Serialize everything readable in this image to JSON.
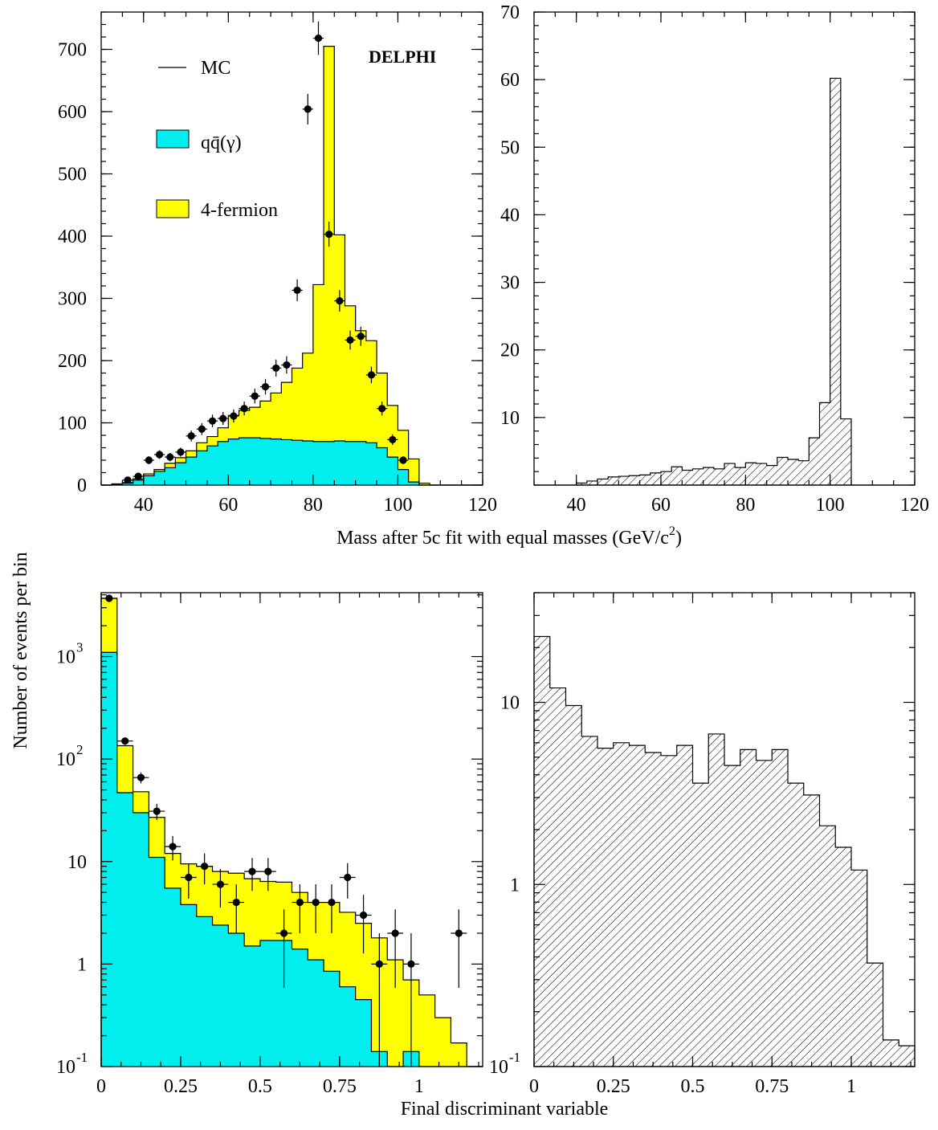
{
  "figure": {
    "ylabel": "Number of events per bin",
    "top_xlabel": "Mass after 5c fit with equal masses (GeV/c^2)",
    "bottom_xlabel": "Final discriminant variable",
    "experiment": "DELPHI",
    "legend": {
      "mc": "MC",
      "qq": "qq̄(γ)",
      "fermion": "4-fermion"
    },
    "colors": {
      "qq_fill": "#00eeee",
      "fermion_fill": "#ffff00",
      "hatch_fill": "#ffffff",
      "line": "#000000"
    }
  },
  "chart_data": [
    {
      "panel": "top-left",
      "type": "histogram",
      "xlabel": "Mass after 5c fit with equal masses (GeV/c^2)",
      "ylabel": "Number of events per bin",
      "xlim": [
        30,
        120
      ],
      "ylim": [
        0,
        760
      ],
      "yscale": "linear",
      "xticks": [
        40,
        60,
        80,
        100,
        120
      ],
      "yticks": [
        0,
        100,
        200,
        300,
        400,
        500,
        600,
        700
      ],
      "bin_edges": [
        30,
        32.5,
        35,
        37.5,
        40,
        42.5,
        45,
        47.5,
        50,
        52.5,
        55,
        57.5,
        60,
        62.5,
        65,
        67.5,
        70,
        72.5,
        75,
        77.5,
        80,
        82.5,
        85,
        87.5,
        90,
        92.5,
        95,
        97.5,
        100,
        102.5,
        105,
        107.5,
        110,
        112.5,
        115,
        117.5,
        120
      ],
      "series": [
        {
          "name": "qq̄(γ)",
          "style": "filled",
          "values": [
            0,
            1,
            3,
            8,
            15,
            22,
            28,
            36,
            45,
            55,
            63,
            70,
            74,
            76,
            76,
            75,
            74,
            73,
            72,
            71,
            70,
            70,
            71,
            70,
            70,
            68,
            60,
            45,
            25,
            5,
            0,
            0,
            0,
            0,
            0,
            0
          ]
        },
        {
          "name": "MC",
          "style": "filled-total",
          "values": [
            0,
            2,
            4,
            10,
            18,
            25,
            35,
            44,
            55,
            68,
            78,
            92,
            112,
            120,
            125,
            135,
            148,
            165,
            188,
            212,
            322,
            705,
            402,
            288,
            248,
            232,
            180,
            128,
            88,
            42,
            3,
            0,
            0,
            0,
            0,
            0
          ]
        }
      ],
      "data_points": {
        "x": [
          36.25,
          38.75,
          41.25,
          43.75,
          46.25,
          48.75,
          51.25,
          53.75,
          56.25,
          58.75,
          61.25,
          63.75,
          66.25,
          68.75,
          71.25,
          73.75,
          76.25,
          78.75,
          81.25,
          83.75,
          86.25,
          88.75,
          91.25,
          93.75,
          96.25,
          98.75,
          101.25
        ],
        "y": [
          8,
          14,
          40,
          49,
          45,
          53,
          79,
          90,
          103,
          107,
          111,
          123,
          143,
          158,
          188,
          193,
          313,
          604,
          718,
          403,
          296,
          233,
          239,
          177,
          123,
          73,
          40
        ]
      }
    },
    {
      "panel": "top-right",
      "type": "histogram",
      "xlim": [
        30,
        120
      ],
      "ylim": [
        0,
        70
      ],
      "yscale": "linear",
      "xticks": [
        40,
        60,
        80,
        100,
        120
      ],
      "yticks": [
        10,
        20,
        30,
        40,
        50,
        60,
        70
      ],
      "bin_edges": [
        30,
        32.5,
        35,
        37.5,
        40,
        42.5,
        45,
        47.5,
        50,
        52.5,
        55,
        57.5,
        60,
        62.5,
        65,
        67.5,
        70,
        72.5,
        75,
        77.5,
        80,
        82.5,
        85,
        87.5,
        90,
        92.5,
        95,
        97.5,
        100,
        102.5,
        105,
        107.5,
        110,
        112.5,
        115,
        117.5,
        120
      ],
      "series": [
        {
          "style": "hatched",
          "values": [
            0,
            0,
            0,
            0,
            0.3,
            0.6,
            0.9,
            1.2,
            1.3,
            1.4,
            1.5,
            1.8,
            2.0,
            2.7,
            2.2,
            2.4,
            2.6,
            2.4,
            3.2,
            2.6,
            3.3,
            3.2,
            2.9,
            4.1,
            3.8,
            3.6,
            7.0,
            12.2,
            60.2,
            9.8,
            0,
            0,
            0,
            0,
            0,
            0
          ]
        }
      ]
    },
    {
      "panel": "bottom-left",
      "type": "histogram",
      "xlabel": "Final discriminant variable",
      "ylabel": "Number of events per bin",
      "xlim": [
        0,
        1.2
      ],
      "ylim": [
        0.1,
        4200
      ],
      "yscale": "log",
      "xticks": [
        0,
        0.25,
        0.5,
        0.75,
        1
      ],
      "xtick_labels": [
        "0",
        "0.25",
        "0.5",
        "0.75",
        "1"
      ],
      "yticks": [
        0.1,
        1,
        10,
        100,
        1000
      ],
      "bin_edges": [
        0,
        0.05,
        0.1,
        0.15,
        0.2,
        0.25,
        0.3,
        0.35,
        0.4,
        0.45,
        0.5,
        0.55,
        0.6,
        0.65,
        0.7,
        0.75,
        0.8,
        0.85,
        0.9,
        0.95,
        1.0,
        1.05,
        1.1,
        1.15,
        1.2
      ],
      "series": [
        {
          "name": "qq̄(γ)",
          "style": "filled",
          "values": [
            1100,
            47,
            30,
            11,
            5.5,
            3.8,
            2.9,
            2.4,
            2.0,
            1.5,
            1.7,
            1.7,
            1.4,
            1.1,
            0.85,
            0.6,
            0.45,
            0.14,
            0.08,
            0.14,
            0.1,
            0,
            0.1,
            0
          ]
        },
        {
          "name": "MC",
          "style": "filled-total",
          "values": [
            3700,
            135,
            48,
            27,
            12,
            9.5,
            9,
            8,
            7.7,
            6.8,
            6.4,
            6.3,
            5,
            4,
            4.0,
            3.2,
            2.5,
            1.8,
            1.1,
            0.7,
            0.5,
            0.3,
            0.17,
            0.1
          ]
        }
      ],
      "data_points": {
        "x": [
          0.025,
          0.075,
          0.125,
          0.175,
          0.225,
          0.275,
          0.325,
          0.375,
          0.425,
          0.475,
          0.525,
          0.575,
          0.625,
          0.675,
          0.725,
          0.775,
          0.825,
          0.875,
          0.925,
          0.975,
          1.125
        ],
        "y": [
          3700,
          150,
          66,
          31,
          14,
          7,
          9,
          6,
          4,
          8,
          8,
          2,
          4,
          4,
          4,
          7,
          3,
          1,
          2,
          1,
          2
        ]
      }
    },
    {
      "panel": "bottom-right",
      "type": "histogram",
      "xlim": [
        0,
        1.2
      ],
      "ylim": [
        0.1,
        40
      ],
      "yscale": "log",
      "xticks": [
        0,
        0.25,
        0.5,
        0.75,
        1
      ],
      "xtick_labels": [
        "0",
        "0.25",
        "0.5",
        "0.75",
        "1"
      ],
      "yticks": [
        0.1,
        1,
        10
      ],
      "bin_edges": [
        0,
        0.05,
        0.1,
        0.15,
        0.2,
        0.25,
        0.3,
        0.35,
        0.4,
        0.45,
        0.5,
        0.55,
        0.6,
        0.65,
        0.7,
        0.75,
        0.8,
        0.85,
        0.9,
        0.95,
        1.0,
        1.05,
        1.1,
        1.15,
        1.2
      ],
      "series": [
        {
          "style": "hatched",
          "values": [
            23,
            12,
            9.6,
            6.5,
            5.6,
            6.0,
            5.8,
            5.3,
            5.1,
            5.8,
            3.6,
            6.7,
            4.5,
            5.5,
            4.8,
            5.5,
            3.6,
            3.1,
            2.1,
            1.6,
            1.2,
            0.37,
            0.14,
            0.13
          ]
        }
      ]
    }
  ]
}
